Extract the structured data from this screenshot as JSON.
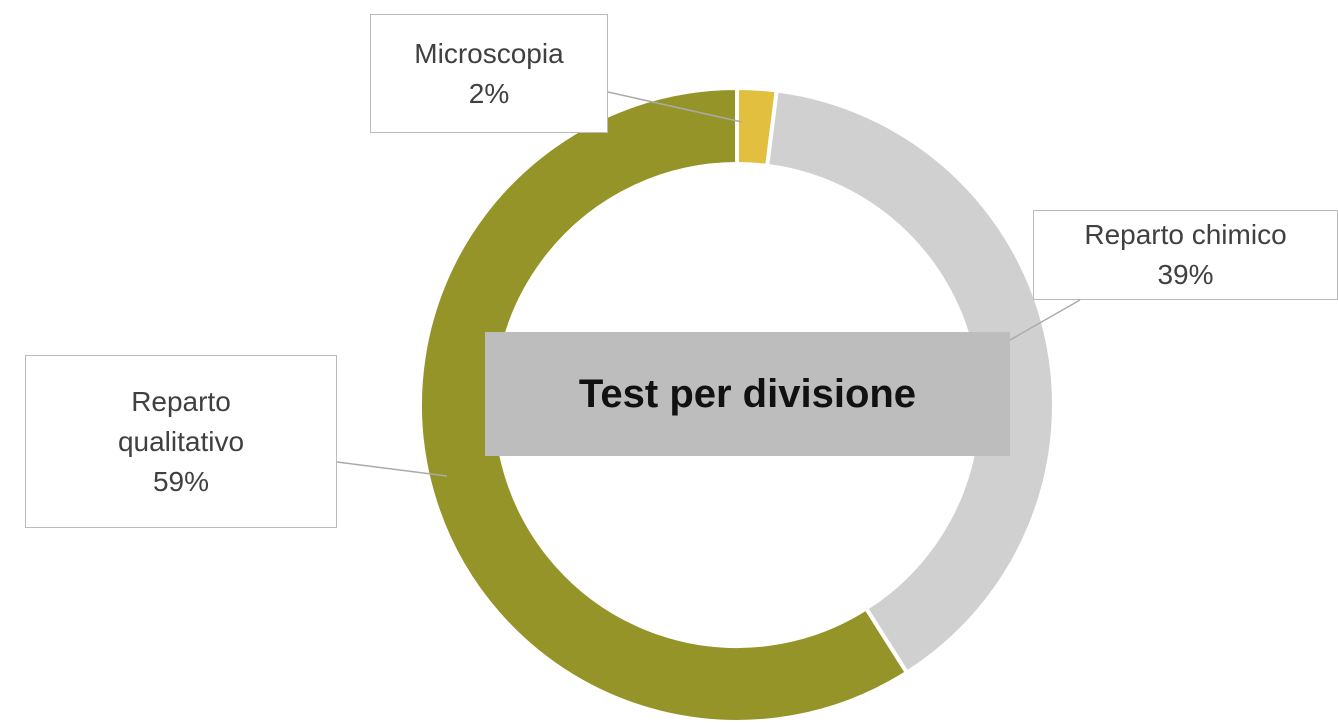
{
  "chart_data": {
    "type": "donut",
    "title": "Test per divisione",
    "categories": [
      "Microscopia",
      "Reparto chimico",
      "Reparto qualitativo"
    ],
    "values": [
      2,
      39,
      59
    ],
    "value_labels": [
      "2%",
      "39%",
      "59%"
    ],
    "colors": [
      "#e2bf3e",
      "#d0d0d0",
      "#949428"
    ]
  }
}
